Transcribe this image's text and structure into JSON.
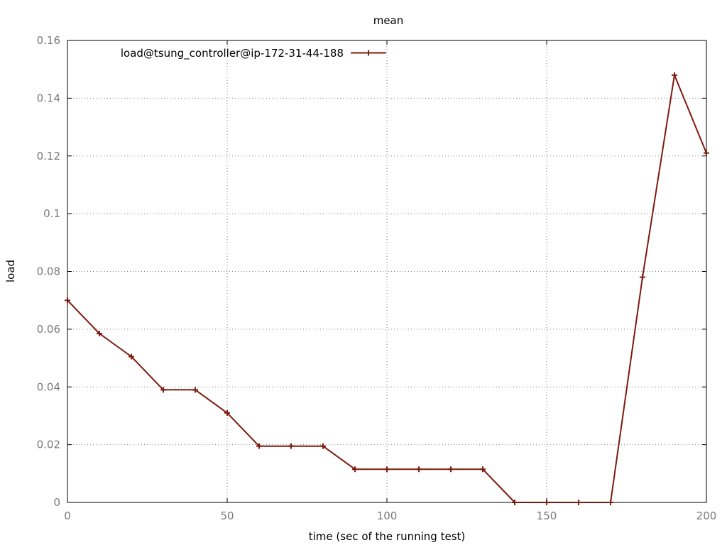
{
  "chart_data": {
    "type": "line",
    "title": "mean",
    "xlabel": "time (sec of the running test)",
    "ylabel": "load",
    "xlim": [
      0,
      200
    ],
    "ylim": [
      0,
      0.16
    ],
    "xticks": [
      "0",
      "50",
      "100",
      "150",
      "200"
    ],
    "yticks": [
      "0",
      "0.02",
      "0.04",
      "0.06",
      "0.08",
      "0.1",
      "0.12",
      "0.14",
      "0.16"
    ],
    "grid": true,
    "legend_position": "top-left",
    "series": [
      {
        "name": "load@tsung_controller@ip-172-31-44-188",
        "color": "#7f1a0f",
        "marker": "plus",
        "x": [
          0,
          10,
          20,
          30,
          40,
          50,
          60,
          70,
          80,
          90,
          100,
          110,
          120,
          130,
          140,
          150,
          160,
          170,
          180,
          190,
          200
        ],
        "y": [
          0.07,
          0.0585,
          0.0505,
          0.039,
          0.039,
          0.031,
          0.0195,
          0.0195,
          0.0195,
          0.0115,
          0.0115,
          0.0115,
          0.0115,
          0.0115,
          0,
          0,
          0,
          0,
          0.078,
          0.148,
          0.121
        ]
      }
    ]
  }
}
